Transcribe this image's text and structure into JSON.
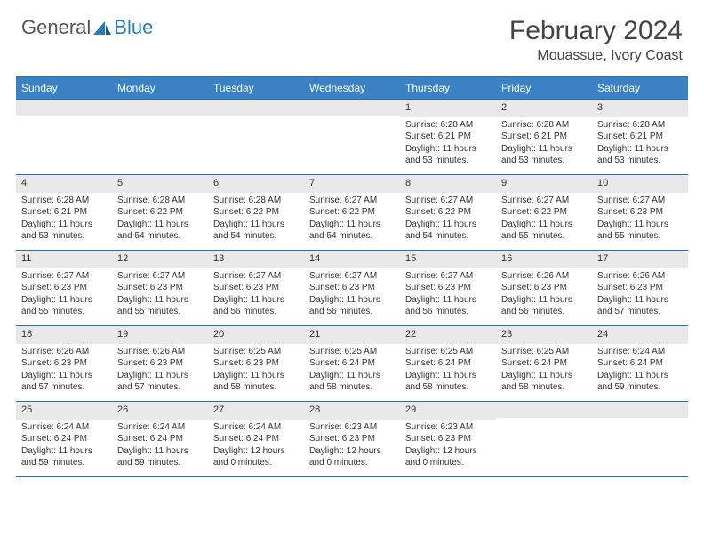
{
  "logo": {
    "text1": "General",
    "text2": "Blue"
  },
  "title": "February 2024",
  "location": "Mouassue, Ivory Coast",
  "colors": {
    "header_bg": "#3a82c4",
    "header_text": "#ffffff",
    "rule": "#2a6ea8",
    "daynum_bg": "#e9e9e9",
    "body_text": "#333333",
    "logo_gray": "#555555",
    "logo_blue": "#2b7bba"
  },
  "day_headers": [
    "Sunday",
    "Monday",
    "Tuesday",
    "Wednesday",
    "Thursday",
    "Friday",
    "Saturday"
  ],
  "weeks": [
    [
      {
        "day": "",
        "sunrise": "",
        "sunset": "",
        "daylight1": "",
        "daylight2": ""
      },
      {
        "day": "",
        "sunrise": "",
        "sunset": "",
        "daylight1": "",
        "daylight2": ""
      },
      {
        "day": "",
        "sunrise": "",
        "sunset": "",
        "daylight1": "",
        "daylight2": ""
      },
      {
        "day": "",
        "sunrise": "",
        "sunset": "",
        "daylight1": "",
        "daylight2": ""
      },
      {
        "day": "1",
        "sunrise": "Sunrise: 6:28 AM",
        "sunset": "Sunset: 6:21 PM",
        "daylight1": "Daylight: 11 hours",
        "daylight2": "and 53 minutes."
      },
      {
        "day": "2",
        "sunrise": "Sunrise: 6:28 AM",
        "sunset": "Sunset: 6:21 PM",
        "daylight1": "Daylight: 11 hours",
        "daylight2": "and 53 minutes."
      },
      {
        "day": "3",
        "sunrise": "Sunrise: 6:28 AM",
        "sunset": "Sunset: 6:21 PM",
        "daylight1": "Daylight: 11 hours",
        "daylight2": "and 53 minutes."
      }
    ],
    [
      {
        "day": "4",
        "sunrise": "Sunrise: 6:28 AM",
        "sunset": "Sunset: 6:21 PM",
        "daylight1": "Daylight: 11 hours",
        "daylight2": "and 53 minutes."
      },
      {
        "day": "5",
        "sunrise": "Sunrise: 6:28 AM",
        "sunset": "Sunset: 6:22 PM",
        "daylight1": "Daylight: 11 hours",
        "daylight2": "and 54 minutes."
      },
      {
        "day": "6",
        "sunrise": "Sunrise: 6:28 AM",
        "sunset": "Sunset: 6:22 PM",
        "daylight1": "Daylight: 11 hours",
        "daylight2": "and 54 minutes."
      },
      {
        "day": "7",
        "sunrise": "Sunrise: 6:27 AM",
        "sunset": "Sunset: 6:22 PM",
        "daylight1": "Daylight: 11 hours",
        "daylight2": "and 54 minutes."
      },
      {
        "day": "8",
        "sunrise": "Sunrise: 6:27 AM",
        "sunset": "Sunset: 6:22 PM",
        "daylight1": "Daylight: 11 hours",
        "daylight2": "and 54 minutes."
      },
      {
        "day": "9",
        "sunrise": "Sunrise: 6:27 AM",
        "sunset": "Sunset: 6:22 PM",
        "daylight1": "Daylight: 11 hours",
        "daylight2": "and 55 minutes."
      },
      {
        "day": "10",
        "sunrise": "Sunrise: 6:27 AM",
        "sunset": "Sunset: 6:23 PM",
        "daylight1": "Daylight: 11 hours",
        "daylight2": "and 55 minutes."
      }
    ],
    [
      {
        "day": "11",
        "sunrise": "Sunrise: 6:27 AM",
        "sunset": "Sunset: 6:23 PM",
        "daylight1": "Daylight: 11 hours",
        "daylight2": "and 55 minutes."
      },
      {
        "day": "12",
        "sunrise": "Sunrise: 6:27 AM",
        "sunset": "Sunset: 6:23 PM",
        "daylight1": "Daylight: 11 hours",
        "daylight2": "and 55 minutes."
      },
      {
        "day": "13",
        "sunrise": "Sunrise: 6:27 AM",
        "sunset": "Sunset: 6:23 PM",
        "daylight1": "Daylight: 11 hours",
        "daylight2": "and 56 minutes."
      },
      {
        "day": "14",
        "sunrise": "Sunrise: 6:27 AM",
        "sunset": "Sunset: 6:23 PM",
        "daylight1": "Daylight: 11 hours",
        "daylight2": "and 56 minutes."
      },
      {
        "day": "15",
        "sunrise": "Sunrise: 6:27 AM",
        "sunset": "Sunset: 6:23 PM",
        "daylight1": "Daylight: 11 hours",
        "daylight2": "and 56 minutes."
      },
      {
        "day": "16",
        "sunrise": "Sunrise: 6:26 AM",
        "sunset": "Sunset: 6:23 PM",
        "daylight1": "Daylight: 11 hours",
        "daylight2": "and 56 minutes."
      },
      {
        "day": "17",
        "sunrise": "Sunrise: 6:26 AM",
        "sunset": "Sunset: 6:23 PM",
        "daylight1": "Daylight: 11 hours",
        "daylight2": "and 57 minutes."
      }
    ],
    [
      {
        "day": "18",
        "sunrise": "Sunrise: 6:26 AM",
        "sunset": "Sunset: 6:23 PM",
        "daylight1": "Daylight: 11 hours",
        "daylight2": "and 57 minutes."
      },
      {
        "day": "19",
        "sunrise": "Sunrise: 6:26 AM",
        "sunset": "Sunset: 6:23 PM",
        "daylight1": "Daylight: 11 hours",
        "daylight2": "and 57 minutes."
      },
      {
        "day": "20",
        "sunrise": "Sunrise: 6:25 AM",
        "sunset": "Sunset: 6:23 PM",
        "daylight1": "Daylight: 11 hours",
        "daylight2": "and 58 minutes."
      },
      {
        "day": "21",
        "sunrise": "Sunrise: 6:25 AM",
        "sunset": "Sunset: 6:24 PM",
        "daylight1": "Daylight: 11 hours",
        "daylight2": "and 58 minutes."
      },
      {
        "day": "22",
        "sunrise": "Sunrise: 6:25 AM",
        "sunset": "Sunset: 6:24 PM",
        "daylight1": "Daylight: 11 hours",
        "daylight2": "and 58 minutes."
      },
      {
        "day": "23",
        "sunrise": "Sunrise: 6:25 AM",
        "sunset": "Sunset: 6:24 PM",
        "daylight1": "Daylight: 11 hours",
        "daylight2": "and 58 minutes."
      },
      {
        "day": "24",
        "sunrise": "Sunrise: 6:24 AM",
        "sunset": "Sunset: 6:24 PM",
        "daylight1": "Daylight: 11 hours",
        "daylight2": "and 59 minutes."
      }
    ],
    [
      {
        "day": "25",
        "sunrise": "Sunrise: 6:24 AM",
        "sunset": "Sunset: 6:24 PM",
        "daylight1": "Daylight: 11 hours",
        "daylight2": "and 59 minutes."
      },
      {
        "day": "26",
        "sunrise": "Sunrise: 6:24 AM",
        "sunset": "Sunset: 6:24 PM",
        "daylight1": "Daylight: 11 hours",
        "daylight2": "and 59 minutes."
      },
      {
        "day": "27",
        "sunrise": "Sunrise: 6:24 AM",
        "sunset": "Sunset: 6:24 PM",
        "daylight1": "Daylight: 12 hours",
        "daylight2": "and 0 minutes."
      },
      {
        "day": "28",
        "sunrise": "Sunrise: 6:23 AM",
        "sunset": "Sunset: 6:23 PM",
        "daylight1": "Daylight: 12 hours",
        "daylight2": "and 0 minutes."
      },
      {
        "day": "29",
        "sunrise": "Sunrise: 6:23 AM",
        "sunset": "Sunset: 6:23 PM",
        "daylight1": "Daylight: 12 hours",
        "daylight2": "and 0 minutes."
      },
      {
        "day": "",
        "sunrise": "",
        "sunset": "",
        "daylight1": "",
        "daylight2": ""
      },
      {
        "day": "",
        "sunrise": "",
        "sunset": "",
        "daylight1": "",
        "daylight2": ""
      }
    ]
  ]
}
